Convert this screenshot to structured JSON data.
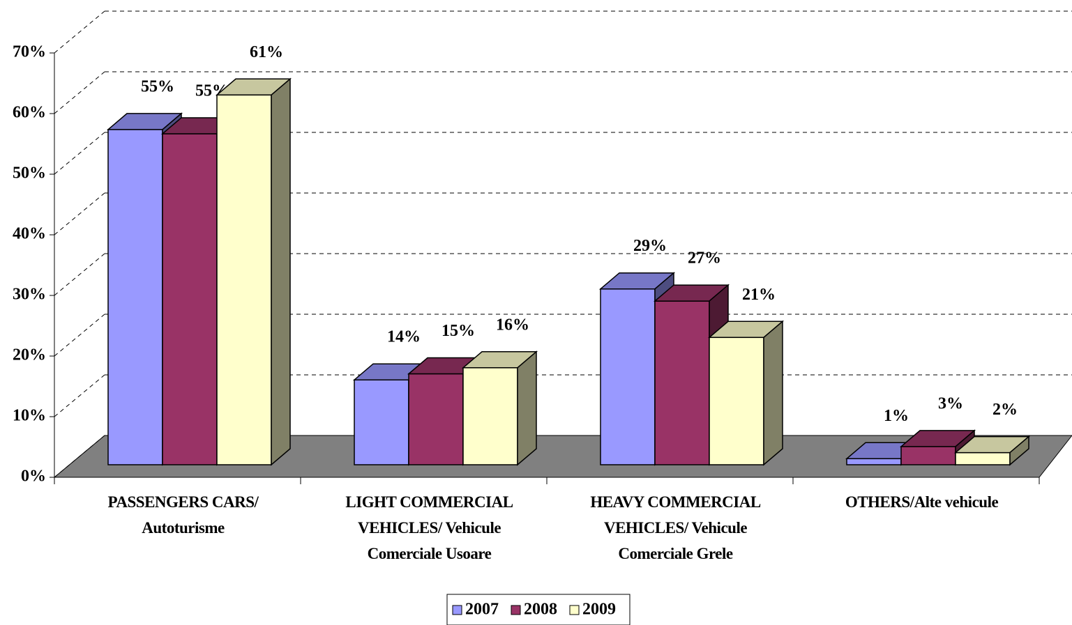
{
  "chart_data": {
    "type": "bar3d",
    "categories": [
      "PASSENGERS CARS/ Autoturisme",
      "LIGHT COMMERCIAL VEHICLES/ Vehicule Comerciale Usoare",
      "HEAVY COMMERCIAL VEHICLES/ Vehicule Comerciale Grele",
      "OTHERS/Alte vehicule"
    ],
    "series": [
      {
        "name": "2007",
        "color": "#9999ff",
        "values": [
          55.3,
          14,
          29,
          1
        ],
        "value_labels": [
          "55%",
          "14%",
          "29%",
          "1%"
        ]
      },
      {
        "name": "2008",
        "color": "#993366",
        "values": [
          54.6,
          15,
          27,
          3
        ],
        "value_labels": [
          "55%",
          "15%",
          "27%",
          "3%"
        ]
      },
      {
        "name": "2009",
        "color": "#ffffcc",
        "values": [
          61,
          16,
          21,
          2
        ],
        "value_labels": [
          "61%",
          "16%",
          "21%",
          "2%"
        ]
      }
    ],
    "ylim": [
      0,
      70
    ],
    "yticks": [
      {
        "value": 0,
        "label": "0%"
      },
      {
        "value": 10,
        "label": "10%"
      },
      {
        "value": 20,
        "label": "20%"
      },
      {
        "value": 30,
        "label": "30%"
      },
      {
        "value": 40,
        "label": "40%"
      },
      {
        "value": 50,
        "label": "50%"
      },
      {
        "value": 60,
        "label": "60%"
      },
      {
        "value": 70,
        "label": "70%"
      }
    ],
    "grid": true,
    "legend": "bottom"
  }
}
